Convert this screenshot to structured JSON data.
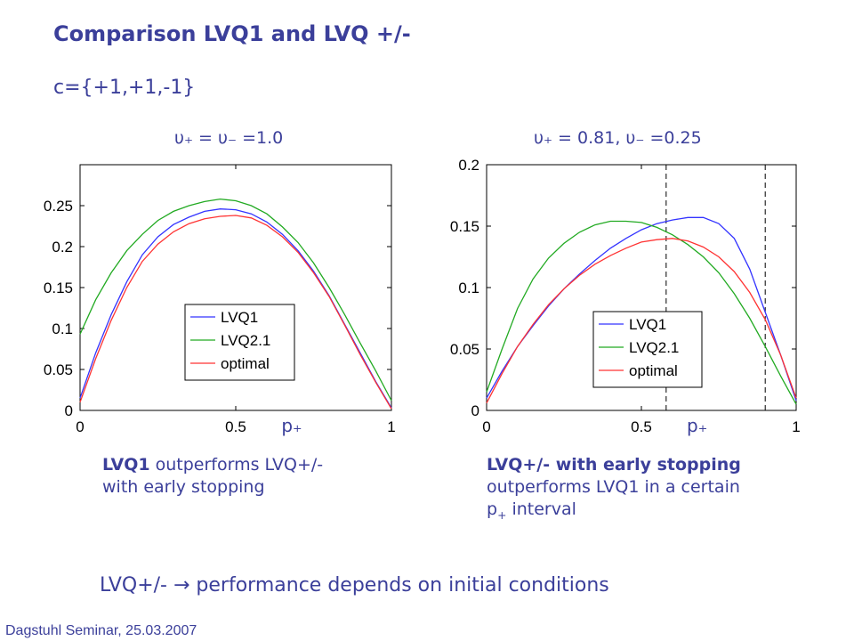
{
  "slide": {
    "title": "Comparison LVQ1 and LVQ +/-",
    "subtitle": "c={+1,+1,-1}",
    "param_left": "υ₊ = υ₋ =1.0",
    "param_right": "υ₊ = 0.81, υ₋ =0.25",
    "caption_left_bold": "LVQ1",
    "caption_left_rest": " outperforms LVQ+/-",
    "caption_left_line2": "with early stopping",
    "caption_right_bold": "LVQ+/- with early stopping",
    "caption_right_line2": "outperforms LVQ1 in a certain",
    "caption_right_line3_a": "p",
    "caption_right_line3_sub": "+",
    "caption_right_line3_b": " interval",
    "conclusion_a": "LVQ+/-",
    "conclusion_arrow": "→",
    "conclusion_b": " performance depends on initial conditions",
    "footer": "Dagstuhl Seminar, 25.03.2007"
  },
  "chart_data": [
    {
      "type": "line",
      "title": "υ₊ = υ₋ =1.0",
      "xlabel": "p₊",
      "ylabel": "",
      "xlim": [
        0,
        1
      ],
      "ylim": [
        0,
        0.3
      ],
      "xticks": [
        0,
        0.5,
        1
      ],
      "xtick_labels": [
        "0",
        "0.5",
        "1"
      ],
      "yticks": [
        0,
        0.05,
        0.1,
        0.15,
        0.2,
        0.25
      ],
      "ytick_labels": [
        "0",
        "0.05",
        "0.1",
        "0.15",
        "0.2",
        "0.25"
      ],
      "grid": false,
      "legend_position": "lower-center",
      "x": [
        0,
        0.05,
        0.1,
        0.15,
        0.2,
        0.25,
        0.3,
        0.35,
        0.4,
        0.45,
        0.5,
        0.55,
        0.6,
        0.65,
        0.7,
        0.75,
        0.8,
        0.85,
        0.9,
        0.95,
        1.0
      ],
      "series": [
        {
          "name": "LVQ1",
          "color": "#3333ff",
          "values": [
            0.015,
            0.07,
            0.117,
            0.157,
            0.19,
            0.212,
            0.227,
            0.236,
            0.243,
            0.246,
            0.245,
            0.24,
            0.23,
            0.215,
            0.195,
            0.17,
            0.14,
            0.105,
            0.07,
            0.035,
            0.003
          ]
        },
        {
          "name": "LVQ2.1",
          "color": "#22aa22",
          "values": [
            0.093,
            0.135,
            0.168,
            0.195,
            0.215,
            0.232,
            0.243,
            0.25,
            0.255,
            0.258,
            0.256,
            0.25,
            0.24,
            0.224,
            0.205,
            0.18,
            0.15,
            0.117,
            0.082,
            0.048,
            0.012
          ]
        },
        {
          "name": "optimal",
          "color": "#ff3333",
          "values": [
            0.01,
            0.063,
            0.11,
            0.15,
            0.182,
            0.203,
            0.218,
            0.228,
            0.234,
            0.237,
            0.238,
            0.235,
            0.226,
            0.212,
            0.193,
            0.168,
            0.139,
            0.104,
            0.068,
            0.034,
            0.002
          ]
        }
      ],
      "vlines": []
    },
    {
      "type": "line",
      "title": "υ₊ = 0.81, υ₋ =0.25",
      "xlabel": "p₊",
      "ylabel": "",
      "xlim": [
        0,
        1
      ],
      "ylim": [
        0,
        0.2
      ],
      "xticks": [
        0,
        0.5,
        1
      ],
      "xtick_labels": [
        "0",
        "0.5",
        "1"
      ],
      "yticks": [
        0,
        0.05,
        0.1,
        0.15,
        0.2
      ],
      "ytick_labels": [
        "0",
        "0.05",
        "0.1",
        "0.15",
        "0.2"
      ],
      "grid": false,
      "legend_position": "lower-center",
      "x": [
        0,
        0.05,
        0.1,
        0.15,
        0.2,
        0.25,
        0.3,
        0.35,
        0.4,
        0.45,
        0.5,
        0.55,
        0.6,
        0.65,
        0.7,
        0.75,
        0.8,
        0.85,
        0.9,
        0.95,
        1.0
      ],
      "series": [
        {
          "name": "LVQ1",
          "color": "#3333ff",
          "values": [
            0.01,
            0.032,
            0.052,
            0.069,
            0.085,
            0.099,
            0.111,
            0.122,
            0.132,
            0.14,
            0.147,
            0.152,
            0.155,
            0.157,
            0.157,
            0.152,
            0.14,
            0.115,
            0.08,
            0.045,
            0.008
          ]
        },
        {
          "name": "LVQ2.1",
          "color": "#22aa22",
          "values": [
            0.015,
            0.05,
            0.083,
            0.107,
            0.124,
            0.136,
            0.145,
            0.151,
            0.154,
            0.154,
            0.153,
            0.149,
            0.143,
            0.135,
            0.125,
            0.112,
            0.095,
            0.075,
            0.052,
            0.028,
            0.005
          ]
        },
        {
          "name": "optimal",
          "color": "#ff3333",
          "values": [
            0.006,
            0.03,
            0.052,
            0.07,
            0.086,
            0.099,
            0.11,
            0.119,
            0.126,
            0.132,
            0.137,
            0.139,
            0.14,
            0.138,
            0.133,
            0.125,
            0.113,
            0.096,
            0.074,
            0.045,
            0.01
          ]
        }
      ],
      "vlines": [
        0.58,
        0.9
      ]
    }
  ]
}
